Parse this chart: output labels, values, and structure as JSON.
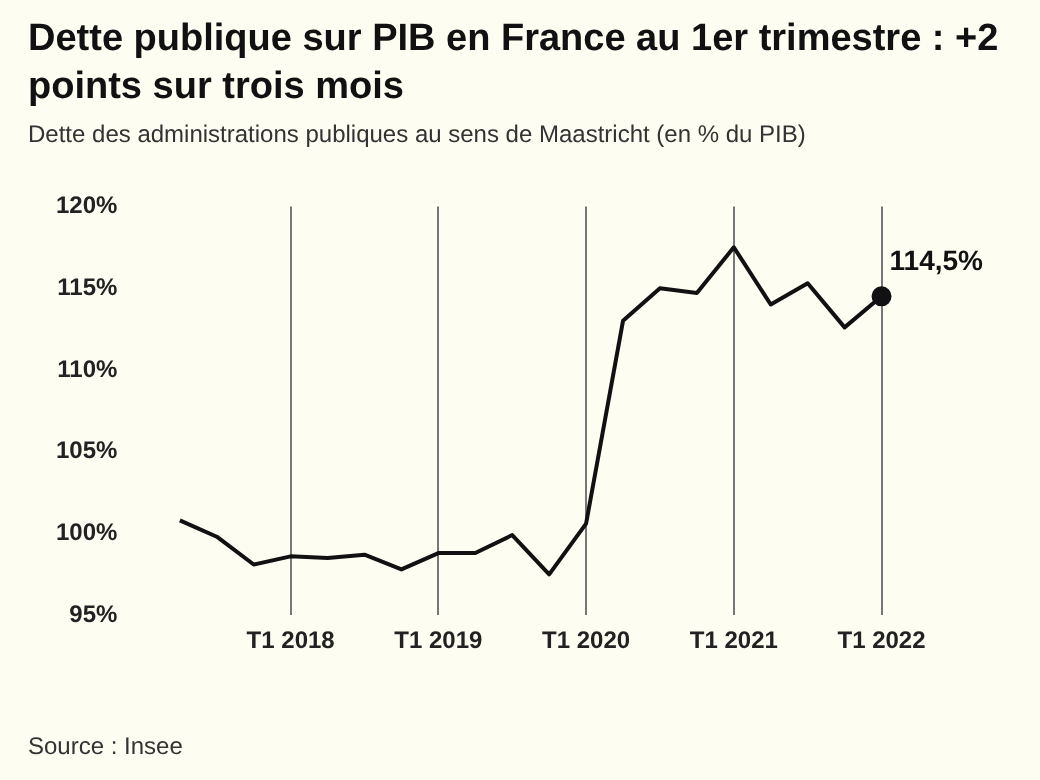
{
  "chart_data": {
    "type": "line",
    "title": "Dette publique sur PIB en France au 1er trimestre : +2 points sur trois mois",
    "subtitle": "Dette des administrations publiques au sens de Maastricht (en % du PIB)",
    "categories": [
      null,
      null,
      null,
      "T1 2018",
      null,
      null,
      null,
      "T1 2019",
      null,
      null,
      null,
      "T1 2020",
      null,
      null,
      null,
      "T1 2021",
      null,
      null,
      null,
      "T1 2022"
    ],
    "series": [
      {
        "color": "#111111",
        "values": [
          100.8,
          99.8,
          98.1,
          98.6,
          98.5,
          98.7,
          97.8,
          98.8,
          98.8,
          99.9,
          97.5,
          100.6,
          113.0,
          115.0,
          114.7,
          117.5,
          114.0,
          115.3,
          112.6,
          114.5
        ],
        "value_labels": [
          null,
          null,
          null,
          null,
          null,
          null,
          null,
          null,
          null,
          null,
          null,
          null,
          null,
          null,
          null,
          null,
          null,
          null,
          null,
          "114,5%"
        ]
      }
    ],
    "ylim": [
      95,
      120
    ],
    "yticks": [
      {
        "value": 95,
        "label": "95%"
      },
      {
        "value": 100,
        "label": "100%"
      },
      {
        "value": 105,
        "label": "105%"
      },
      {
        "value": 110,
        "label": "110%"
      },
      {
        "value": 115,
        "label": "115%"
      },
      {
        "value": 120,
        "label": "120%"
      }
    ],
    "grid": "x",
    "legend": false,
    "line_style": "solid",
    "annotations": [
      "Source : Insee"
    ]
  }
}
